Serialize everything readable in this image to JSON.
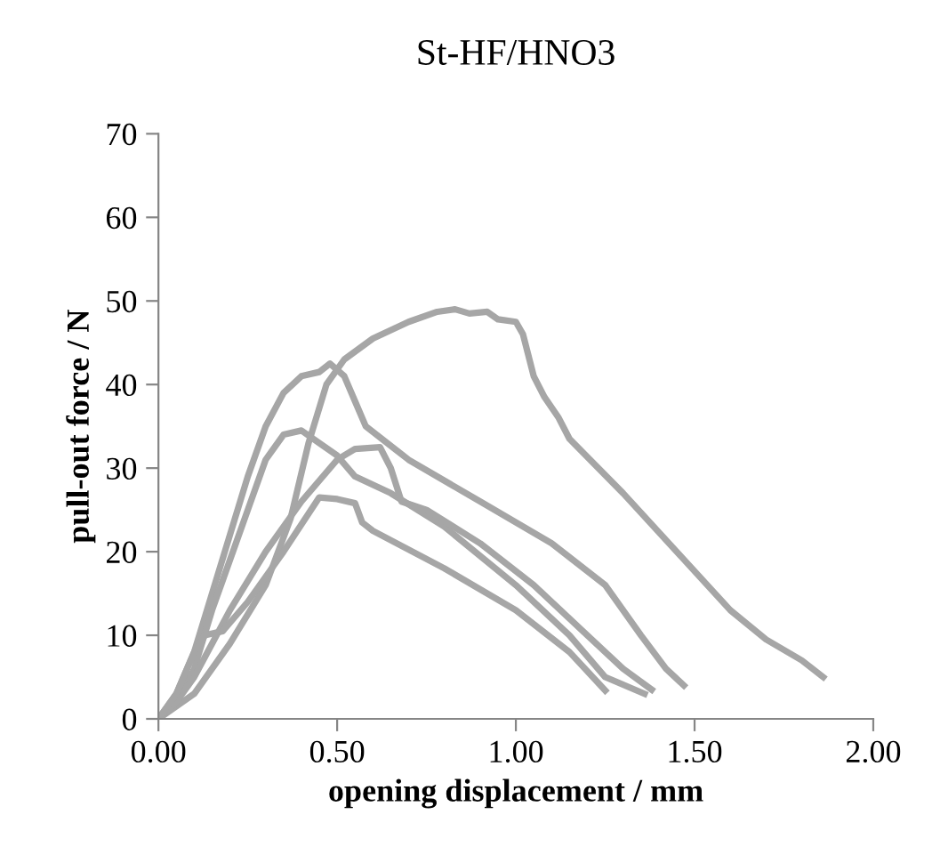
{
  "chart_data": {
    "type": "line",
    "title": "St-HF/HNO3",
    "xlabel": "opening displacement / mm",
    "ylabel": "pull-out force / N",
    "xlim": [
      0,
      2
    ],
    "xticks": [
      {
        "value": 0,
        "label": "0.00"
      },
      {
        "value": 0.5,
        "label": "0.50"
      },
      {
        "value": 1,
        "label": "1.00"
      },
      {
        "value": 1.5,
        "label": "1.50"
      },
      {
        "value": 2,
        "label": "2.00"
      }
    ],
    "ylim": [
      0,
      70
    ],
    "yticks": [
      0,
      10,
      20,
      30,
      40,
      50,
      60,
      70
    ],
    "grid": false,
    "marker": "none",
    "line_style": "solid",
    "series": [
      {
        "color": "#a6a6a6",
        "x": [
          0,
          0.1,
          0.2,
          0.3,
          0.37,
          0.42,
          0.47,
          0.52,
          0.6,
          0.7,
          0.78,
          0.83,
          0.87,
          0.92,
          0.95,
          1.0,
          1.02,
          1.05,
          1.08,
          1.12,
          1.15,
          1.3,
          1.45,
          1.6,
          1.7,
          1.8,
          1.86
        ],
        "values": [
          0,
          3,
          9,
          16,
          24,
          33,
          40,
          43,
          45.5,
          47.5,
          48.7,
          49,
          48.5,
          48.7,
          47.8,
          47.5,
          46,
          41,
          38.5,
          36,
          33.5,
          27,
          20,
          13,
          9.5,
          7,
          5
        ]
      },
      {
        "color": "#a6a6a6",
        "x": [
          0,
          0.05,
          0.1,
          0.15,
          0.2,
          0.25,
          0.3,
          0.35,
          0.4,
          0.45,
          0.48,
          0.52,
          0.55,
          0.58,
          0.7,
          0.9,
          1.1,
          1.25,
          1.35,
          1.42,
          1.47
        ],
        "values": [
          0,
          3,
          8,
          15,
          22,
          29,
          35,
          39,
          41,
          41.5,
          42.5,
          41,
          38,
          35,
          31,
          26,
          21,
          16,
          10,
          6,
          4
        ]
      },
      {
        "color": "#a6a6a6",
        "x": [
          0,
          0.05,
          0.1,
          0.15,
          0.2,
          0.25,
          0.3,
          0.35,
          0.4,
          0.45,
          0.5,
          0.55,
          0.65,
          0.8,
          1.0,
          1.15,
          1.25,
          1.36
        ],
        "values": [
          0,
          2,
          6,
          13,
          19,
          25,
          31,
          34,
          34.5,
          33,
          31.5,
          29,
          27,
          23,
          16,
          10,
          5,
          3
        ]
      },
      {
        "color": "#a6a6a6",
        "x": [
          0,
          0.05,
          0.1,
          0.15,
          0.2,
          0.3,
          0.4,
          0.5,
          0.55,
          0.62,
          0.65,
          0.68,
          0.75,
          0.9,
          1.05,
          1.2,
          1.3,
          1.38
        ],
        "values": [
          0,
          2,
          5,
          9,
          13,
          20,
          26,
          31,
          32.3,
          32.5,
          30,
          26,
          25,
          21,
          16,
          10,
          6,
          3.5
        ]
      },
      {
        "color": "#a6a6a6",
        "x": [
          0,
          0.05,
          0.1,
          0.13,
          0.18,
          0.25,
          0.35,
          0.45,
          0.5,
          0.55,
          0.57,
          0.6,
          0.8,
          1.0,
          1.15,
          1.25
        ],
        "values": [
          0,
          3,
          8,
          10,
          10.5,
          14,
          20,
          26.5,
          26.3,
          25.8,
          23.5,
          22.5,
          18,
          13,
          8,
          3.4
        ]
      }
    ]
  }
}
